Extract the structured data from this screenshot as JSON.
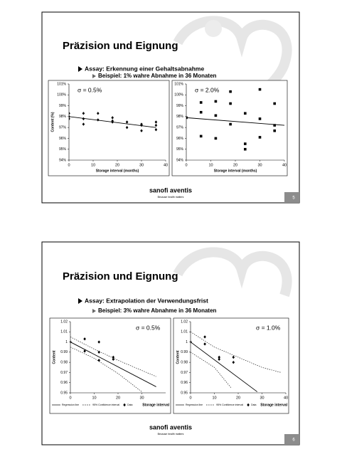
{
  "slides": [
    {
      "title": "Präzision und Eignung",
      "bullet": "Assay: Erkennung einer Gehaltsabnahme",
      "sub_bullet": "Beispiel: 1% wahre Abnahme in 36 Monaten",
      "logo": "sanofi aventis",
      "tagline": "Because health matters",
      "number": "5",
      "chart_data": [
        {
          "type": "scatter",
          "annotation": "σ = 0.5%",
          "xlabel": "Storage interval (months)",
          "ylabel": "Content (%)",
          "xlim": [
            0,
            40
          ],
          "ylim": [
            94,
            101
          ],
          "xticks": [
            0,
            10,
            20,
            30,
            40
          ],
          "yticks": [
            {
              "value": 94,
              "label": "94%"
            },
            {
              "value": 95,
              "label": "95%"
            },
            {
              "value": 96,
              "label": "96%"
            },
            {
              "value": 97,
              "label": "97%"
            },
            {
              "value": 98,
              "label": "98%"
            },
            {
              "value": 99,
              "label": "99%"
            },
            {
              "value": 100,
              "label": "100%"
            },
            {
              "value": 101,
              "label": "101%"
            }
          ],
          "series": [
            {
              "marker": "diamond",
              "color": "#000000",
              "x": [
                0,
                0,
                0,
                6,
                6,
                6,
                12,
                12,
                18,
                18,
                18,
                24,
                24,
                30,
                30,
                30,
                36,
                36,
                36
              ],
              "values": [
                98.3,
                98.0,
                97.8,
                98.3,
                97.8,
                97.3,
                98.3,
                97.7,
                97.9,
                97.6,
                97.5,
                97.5,
                97.0,
                97.3,
                97.2,
                96.7,
                97.5,
                97.2,
                96.8
              ]
            },
            {
              "marker": "line",
              "color": "#000000",
              "x": [
                0,
                36
              ],
              "values": [
                98.0,
                97.0
              ]
            }
          ]
        },
        {
          "type": "scatter",
          "annotation": "σ = 2.0%",
          "xlabel": "Storage interval (months)",
          "xlim": [
            0,
            40
          ],
          "ylim": [
            94,
            101
          ],
          "xticks": [
            0,
            10,
            20,
            30,
            40
          ],
          "yticks": [
            {
              "value": 94,
              "label": "94%"
            },
            {
              "value": 95,
              "label": "95%"
            },
            {
              "value": 96,
              "label": "96%"
            },
            {
              "value": 97,
              "label": "97%"
            },
            {
              "value": 98,
              "label": "98%"
            },
            {
              "value": 99,
              "label": "99%"
            },
            {
              "value": 100,
              "label": "100%"
            },
            {
              "value": 101,
              "label": "101%"
            }
          ],
          "series": [
            {
              "marker": "square",
              "color": "#000000",
              "x": [
                0,
                6,
                6,
                6,
                12,
                12,
                12,
                18,
                18,
                18,
                24,
                24,
                24,
                30,
                30,
                30,
                36,
                36,
                36
              ],
              "values": [
                97.9,
                99.3,
                98.4,
                96.2,
                99.4,
                98.1,
                96.0,
                100.3,
                99.2,
                97.3,
                98.3,
                95.5,
                95.0,
                100.5,
                97.8,
                96.1,
                99.2,
                97.2,
                96.7
              ]
            },
            {
              "marker": "line",
              "color": "#000000",
              "x": [
                0,
                40
              ],
              "values": [
                97.9,
                97.2
              ]
            }
          ]
        }
      ]
    },
    {
      "title": "Präzision und Eignung",
      "bullet": "Assay: Extrapolation der Verwendungsfrist",
      "sub_bullet": "Beispiel: 3% wahre Abnahme in 36 Monaten",
      "logo": "sanofi aventis",
      "tagline": "Because health matters",
      "number": "6",
      "chart_data": [
        {
          "type": "scatter",
          "annotation": "σ = 0.5%",
          "xlabel": "Storage interval",
          "ylabel": "Content",
          "legend": "bottom",
          "xlim": [
            0,
            40
          ],
          "ylim": [
            0.95,
            1.02
          ],
          "xticks": [
            0,
            10,
            20,
            30
          ],
          "yticks": [
            0.95,
            0.96,
            0.97,
            0.98,
            0.99,
            1,
            1.01,
            1.02
          ],
          "series": [
            {
              "name": "Regression line",
              "marker": "line",
              "color": "#000000",
              "x": [
                0,
                36
              ],
              "values": [
                1.0,
                0.956
              ]
            },
            {
              "name": "95% Confidence interval",
              "marker": "dashed",
              "color": "#000000",
              "x": [
                0,
                10,
                20,
                30,
                36
              ],
              "values": [
                1.005,
                0.993,
                0.982,
                0.972,
                0.966
              ]
            },
            {
              "marker": "dashed",
              "color": "#000000",
              "x": [
                0,
                10,
                20,
                30
              ],
              "values": [
                0.995,
                0.984,
                0.969,
                0.951
              ]
            },
            {
              "name": "Data",
              "marker": "diamond",
              "color": "#000000",
              "x": [
                0,
                6,
                6,
                12,
                12,
                12,
                18,
                18
              ],
              "values": [
                1.0,
                1.003,
                0.991,
                1.0,
                0.99,
                0.982,
                0.985,
                0.983
              ]
            }
          ]
        },
        {
          "type": "scatter",
          "annotation": "σ = 1.0%",
          "xlabel": "Storage interval",
          "ylabel": "Content",
          "legend": "bottom",
          "xlim": [
            0,
            40
          ],
          "ylim": [
            0.95,
            1.02
          ],
          "xticks": [
            0,
            10,
            20,
            30,
            40
          ],
          "yticks": [
            0.95,
            0.96,
            0.97,
            0.98,
            0.99,
            1,
            1.01,
            1.02
          ],
          "series": [
            {
              "name": "Regression line",
              "marker": "line",
              "color": "#000000",
              "x": [
                0,
                28
              ],
              "values": [
                1.0,
                0.951
              ]
            },
            {
              "name": "95% Confidence interval",
              "marker": "dashed",
              "color": "#000000",
              "x": [
                0,
                10,
                20,
                30,
                38
              ],
              "values": [
                1.01,
                0.995,
                0.985,
                0.975,
                0.97
              ]
            },
            {
              "marker": "dashed",
              "color": "#000000",
              "x": [
                0,
                10,
                17
              ],
              "values": [
                0.99,
                0.975,
                0.955
              ]
            },
            {
              "name": "Data",
              "marker": "diamond",
              "color": "#000000",
              "x": [
                0,
                6,
                6,
                12,
                12,
                18,
                18
              ],
              "values": [
                1.0,
                1.005,
                0.998,
                0.985,
                0.983,
                0.985,
                0.98
              ]
            }
          ]
        }
      ]
    }
  ]
}
